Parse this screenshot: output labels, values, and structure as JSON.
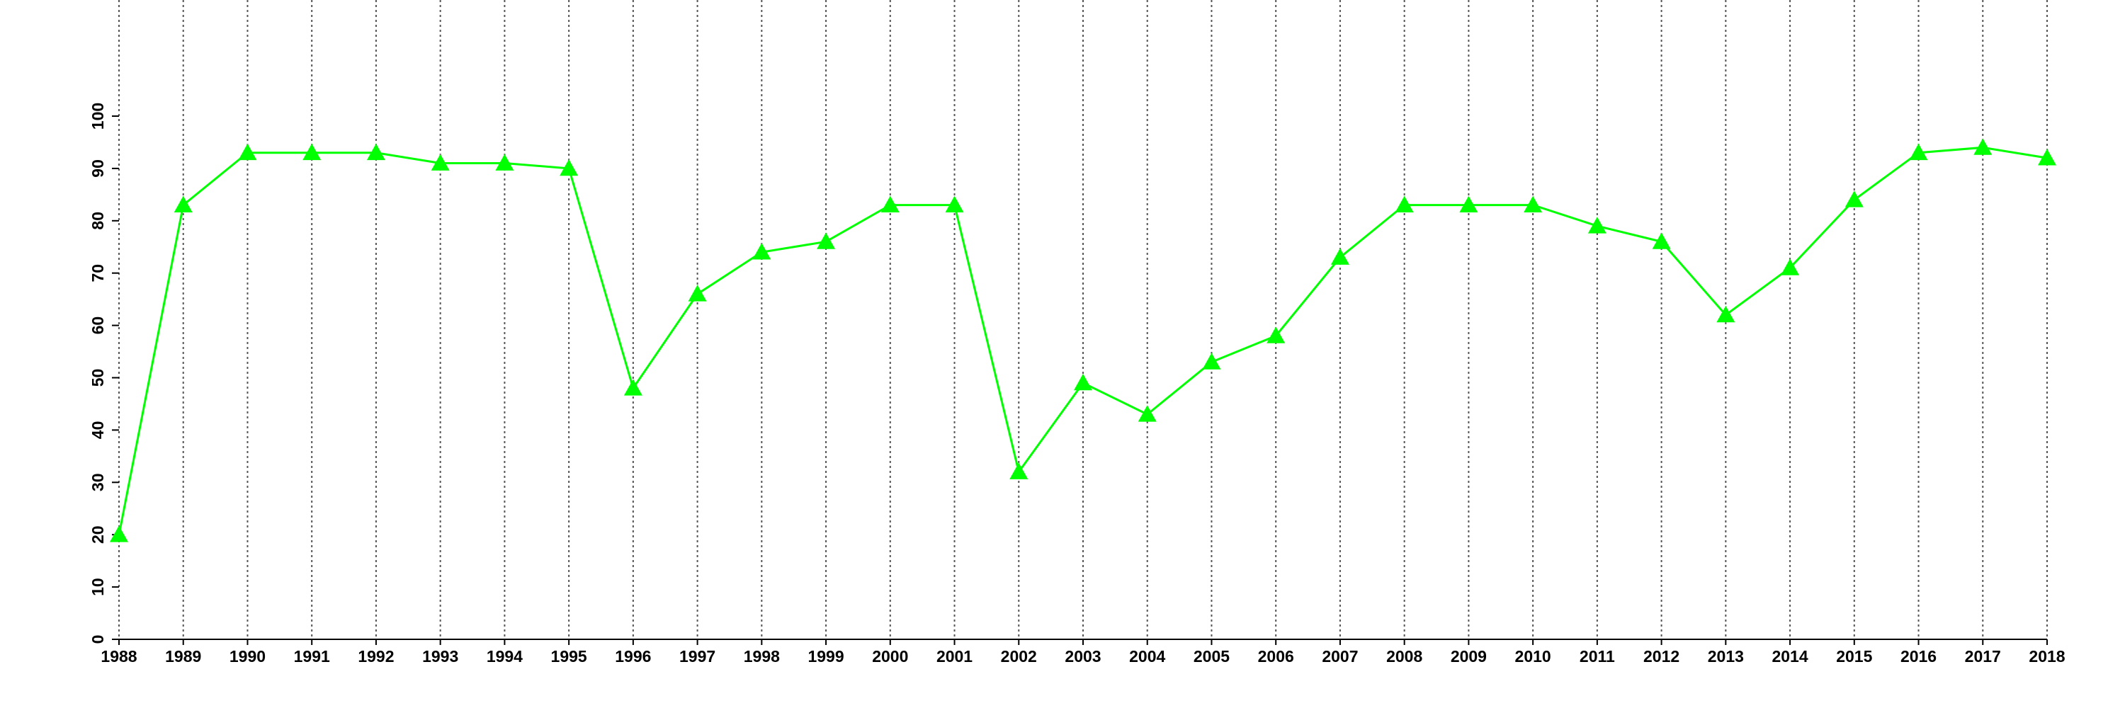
{
  "chart_data": {
    "type": "line",
    "x": [
      1988,
      1989,
      1990,
      1991,
      1992,
      1993,
      1994,
      1995,
      1996,
      1997,
      1998,
      1999,
      2000,
      2001,
      2002,
      2003,
      2004,
      2005,
      2006,
      2007,
      2008,
      2009,
      2010,
      2011,
      2012,
      2013,
      2014,
      2015,
      2016,
      2017,
      2018
    ],
    "series": [
      {
        "color": "#00ff00",
        "marker": "triangle",
        "values": [
          20,
          83,
          93,
          93,
          93,
          91,
          91,
          90,
          48,
          66,
          74,
          76,
          83,
          83,
          32,
          49,
          43,
          53,
          58,
          73,
          83,
          83,
          83,
          79,
          76,
          62,
          71,
          84,
          93,
          94,
          92
        ]
      }
    ],
    "xlim": [
      1988,
      2018
    ],
    "xticks": [
      1988,
      1989,
      1990,
      1991,
      1992,
      1993,
      1994,
      1995,
      1996,
      1997,
      1998,
      1999,
      2000,
      2001,
      2002,
      2003,
      2004,
      2005,
      2006,
      2007,
      2008,
      2009,
      2010,
      2011,
      2012,
      2013,
      2014,
      2015,
      2016,
      2017,
      2018
    ],
    "ylim": [
      0,
      100
    ],
    "yticks": [
      0,
      10,
      20,
      30,
      40,
      50,
      60,
      70,
      80,
      90,
      100
    ],
    "grid": "x"
  }
}
